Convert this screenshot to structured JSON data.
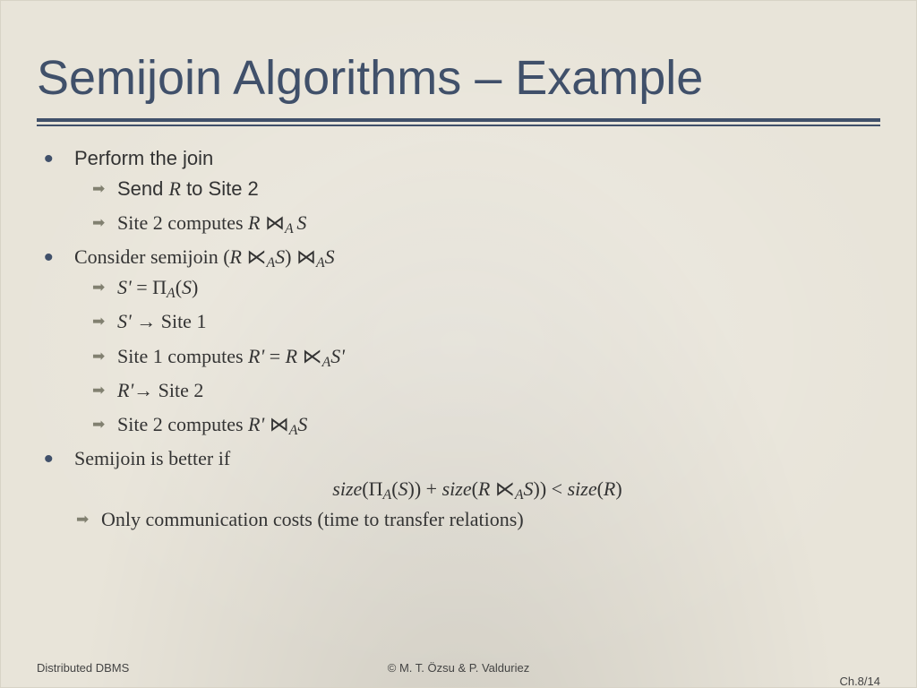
{
  "title": "Semijoin Algorithms – Example",
  "bullets": {
    "b1": {
      "text": "Perform the join",
      "s1": "Send R to Site 2",
      "s2": "Site 2 computes R ⋈A S"
    },
    "b2": {
      "text": "Consider semijoin (R ⋉AS) ⋈AS",
      "s1": "S' = ΠA(S)",
      "s2": "S' → Site 1",
      "s3": "Site 1 computes R' = R ⋉AS'",
      "s4": "R'→ Site 2",
      "s5": "Site 2 computes R' ⋈AS"
    },
    "b3": {
      "text": "Semijoin is better if",
      "formula": "size(ΠA(S)) + size(R ⋉AS)) < size(R)",
      "s1": "Only communication costs (time to transfer relations)"
    }
  },
  "footer": {
    "left": "Distributed DBMS",
    "center": "© M. T. Özsu & P. Valduriez",
    "right": "Ch.8/14"
  },
  "colors": {
    "title": "#40506a",
    "bullet": "#40506a",
    "arrow": "#818070",
    "background": "#e8e4d9",
    "body_text": "#333333"
  },
  "typography": {
    "title_fontsize": 54,
    "body_fontsize": 22,
    "footer_fontsize": 13,
    "title_font": "Helvetica/Arial",
    "body_font_mix": "Arial + Times italic math"
  }
}
